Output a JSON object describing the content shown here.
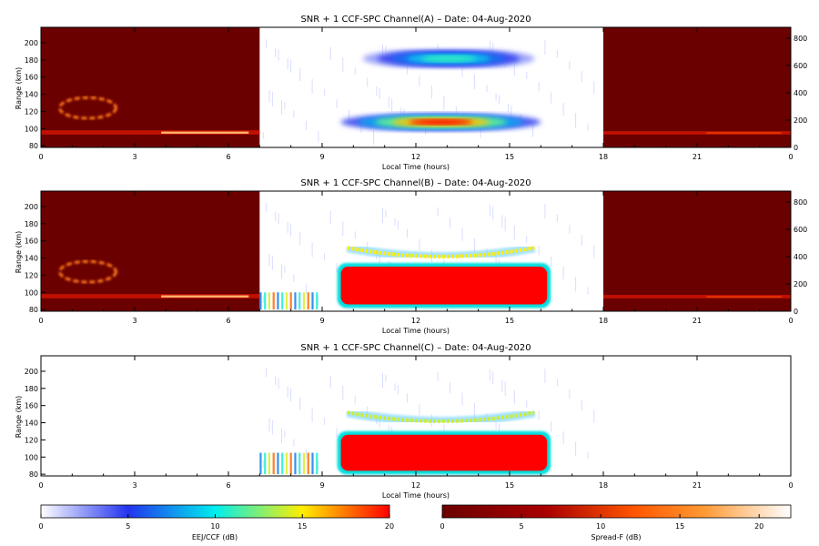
{
  "chart_data": [
    {
      "type": "heatmap",
      "title": "SNR + 1 CCF-SPC Channel(A) – Date: 04-Aug-2020",
      "xlabel": "Local Time (hours)",
      "ylabel": "Range (km)",
      "xlim": [
        0,
        24
      ],
      "ylim": [
        78,
        218
      ],
      "xticks": [
        "0",
        "3",
        "6",
        "9",
        "12",
        "15",
        "18",
        "21",
        "0"
      ],
      "yticks": [
        "80",
        "100",
        "120",
        "140",
        "160",
        "180",
        "200"
      ],
      "y2ticks": [
        "0",
        "200",
        "400",
        "600",
        "800"
      ],
      "y2lim": [
        0,
        880
      ],
      "night_colorbar": "Spread-F (dB)",
      "day_colorbar": "EEJ/CCF (dB)",
      "night_windows": [
        [
          0,
          7
        ],
        [
          18,
          24
        ]
      ],
      "features": [
        {
          "regime": "night",
          "kind": "layer",
          "t": [
            0,
            7
          ],
          "range_km": [
            93,
            98
          ],
          "peak_db": 18
        },
        {
          "regime": "night",
          "kind": "blob",
          "t": [
            0.6,
            2.4
          ],
          "range_km": [
            112,
            136
          ],
          "peak_db": 14
        },
        {
          "regime": "night",
          "kind": "layer",
          "t": [
            18,
            24
          ],
          "range_km": [
            93,
            97
          ],
          "peak_db": 9
        },
        {
          "regime": "day",
          "kind": "band",
          "t": [
            9.6,
            16.0
          ],
          "range_km": [
            97,
            118
          ],
          "peak_db": 20
        },
        {
          "regime": "day",
          "kind": "band",
          "t": [
            10.3,
            15.8
          ],
          "range_km": [
            170,
            193
          ],
          "peak_db": 11
        }
      ]
    },
    {
      "type": "heatmap",
      "title": "SNR + 1 CCF-SPC Channel(B) – Date: 04-Aug-2020",
      "xlabel": "Local Time (hours)",
      "ylabel": "Range (km)",
      "xlim": [
        0,
        24
      ],
      "ylim": [
        78,
        218
      ],
      "xticks": [
        "0",
        "3",
        "6",
        "9",
        "12",
        "15",
        "18",
        "21",
        "0"
      ],
      "yticks": [
        "80",
        "100",
        "120",
        "140",
        "160",
        "180",
        "200"
      ],
      "y2ticks": [
        "0",
        "200",
        "400",
        "600",
        "800"
      ],
      "y2lim": [
        0,
        880
      ],
      "night_windows": [
        [
          0,
          7
        ],
        [
          18,
          24
        ]
      ],
      "features": [
        {
          "regime": "night",
          "kind": "layer",
          "t": [
            0,
            7
          ],
          "range_km": [
            93,
            98
          ],
          "peak_db": 18
        },
        {
          "regime": "night",
          "kind": "blob",
          "t": [
            0.6,
            2.4
          ],
          "range_km": [
            112,
            136
          ],
          "peak_db": 14
        },
        {
          "regime": "night",
          "kind": "layer",
          "t": [
            18,
            24
          ],
          "range_km": [
            93,
            97
          ],
          "peak_db": 9
        },
        {
          "regime": "day",
          "kind": "saturated",
          "t": [
            9.6,
            16.2
          ],
          "range_km": [
            86,
            130
          ],
          "peak_db": 20
        },
        {
          "regime": "day",
          "kind": "arc",
          "t": [
            9.8,
            15.8
          ],
          "range_km": [
            142,
            152
          ],
          "peak_db": 15
        },
        {
          "regime": "day",
          "kind": "patch",
          "t": [
            7.0,
            8.8
          ],
          "range_km": [
            80,
            100
          ],
          "peak_db": 12
        }
      ]
    },
    {
      "type": "heatmap",
      "title": "SNR + 1 CCF-SPC Channel(C) – Date: 04-Aug-2020",
      "xlabel": "Local Time (hours)",
      "ylabel": "Range (km)",
      "xlim": [
        0,
        24
      ],
      "ylim": [
        78,
        218
      ],
      "xticks": [
        "0",
        "3",
        "6",
        "9",
        "12",
        "15",
        "18",
        "21",
        "0"
      ],
      "yticks": [
        "80",
        "100",
        "120",
        "140",
        "160",
        "180",
        "200"
      ],
      "y2ticks": [],
      "features": [
        {
          "regime": "day",
          "kind": "saturated",
          "t": [
            9.6,
            16.2
          ],
          "range_km": [
            84,
            126
          ],
          "peak_db": 20
        },
        {
          "regime": "day",
          "kind": "arc",
          "t": [
            9.8,
            15.8
          ],
          "range_km": [
            142,
            152
          ],
          "peak_db": 14
        },
        {
          "regime": "day",
          "kind": "patch",
          "t": [
            7.0,
            8.8
          ],
          "range_km": [
            80,
            105
          ],
          "peak_db": 11
        }
      ]
    }
  ],
  "colorbars": [
    {
      "label": "EEJ/CCF (dB)",
      "ticks": [
        "0",
        "5",
        "10",
        "15",
        "20"
      ],
      "range": [
        0,
        20
      ],
      "colors": [
        "#ffffff",
        "#2233ee",
        "#00eeee",
        "#ffee00",
        "#ff0000"
      ]
    },
    {
      "label": "Spread-F (dB)",
      "ticks": [
        "0",
        "5",
        "10",
        "15",
        "20"
      ],
      "range": [
        0,
        22
      ],
      "colors": [
        "#6b0000",
        "#aa0000",
        "#ff5500",
        "#ff9933",
        "#ffffff"
      ]
    }
  ]
}
